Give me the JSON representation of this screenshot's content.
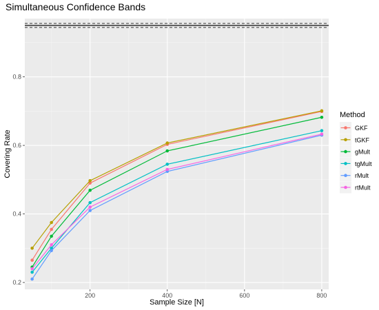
{
  "chart_data": {
    "type": "line",
    "title": "Simultaneous Confidence Bands",
    "xlabel": "Sample Size [N]",
    "ylabel": "Covering Rate",
    "x": [
      50,
      100,
      200,
      400,
      800
    ],
    "xlim": [
      31,
      818
    ],
    "ylim": [
      0.18,
      0.97
    ],
    "xticks": [
      200,
      400,
      600,
      800
    ],
    "yticks": [
      0.2,
      0.4,
      0.6,
      0.8
    ],
    "xtick_labels": [
      "200",
      "400",
      "600",
      "800"
    ],
    "ytick_labels": [
      "0.2",
      "0.4",
      "0.6",
      "0.8"
    ],
    "grid": true,
    "legend_title": "Method",
    "legend_position": "right",
    "reference_line": {
      "y": 0.95,
      "band": [
        0.944,
        0.956
      ],
      "style": "dashed"
    },
    "series": [
      {
        "name": "GKF",
        "color": "#F8766D",
        "values": [
          0.265,
          0.355,
          0.49,
          0.603,
          0.699
        ]
      },
      {
        "name": "tGKF",
        "color": "#B79F00",
        "values": [
          0.3,
          0.375,
          0.497,
          0.607,
          0.701
        ]
      },
      {
        "name": "gMult",
        "color": "#00BA38",
        "values": [
          0.245,
          0.335,
          0.469,
          0.584,
          0.682
        ]
      },
      {
        "name": "tgMult",
        "color": "#00BFC4",
        "values": [
          0.23,
          0.3,
          0.433,
          0.545,
          0.643
        ]
      },
      {
        "name": "rMult",
        "color": "#619CFF",
        "values": [
          0.21,
          0.293,
          0.41,
          0.524,
          0.63
        ]
      },
      {
        "name": "rtMult",
        "color": "#F564E3",
        "values": [
          0.24,
          0.31,
          0.42,
          0.53,
          0.633
        ]
      }
    ]
  }
}
